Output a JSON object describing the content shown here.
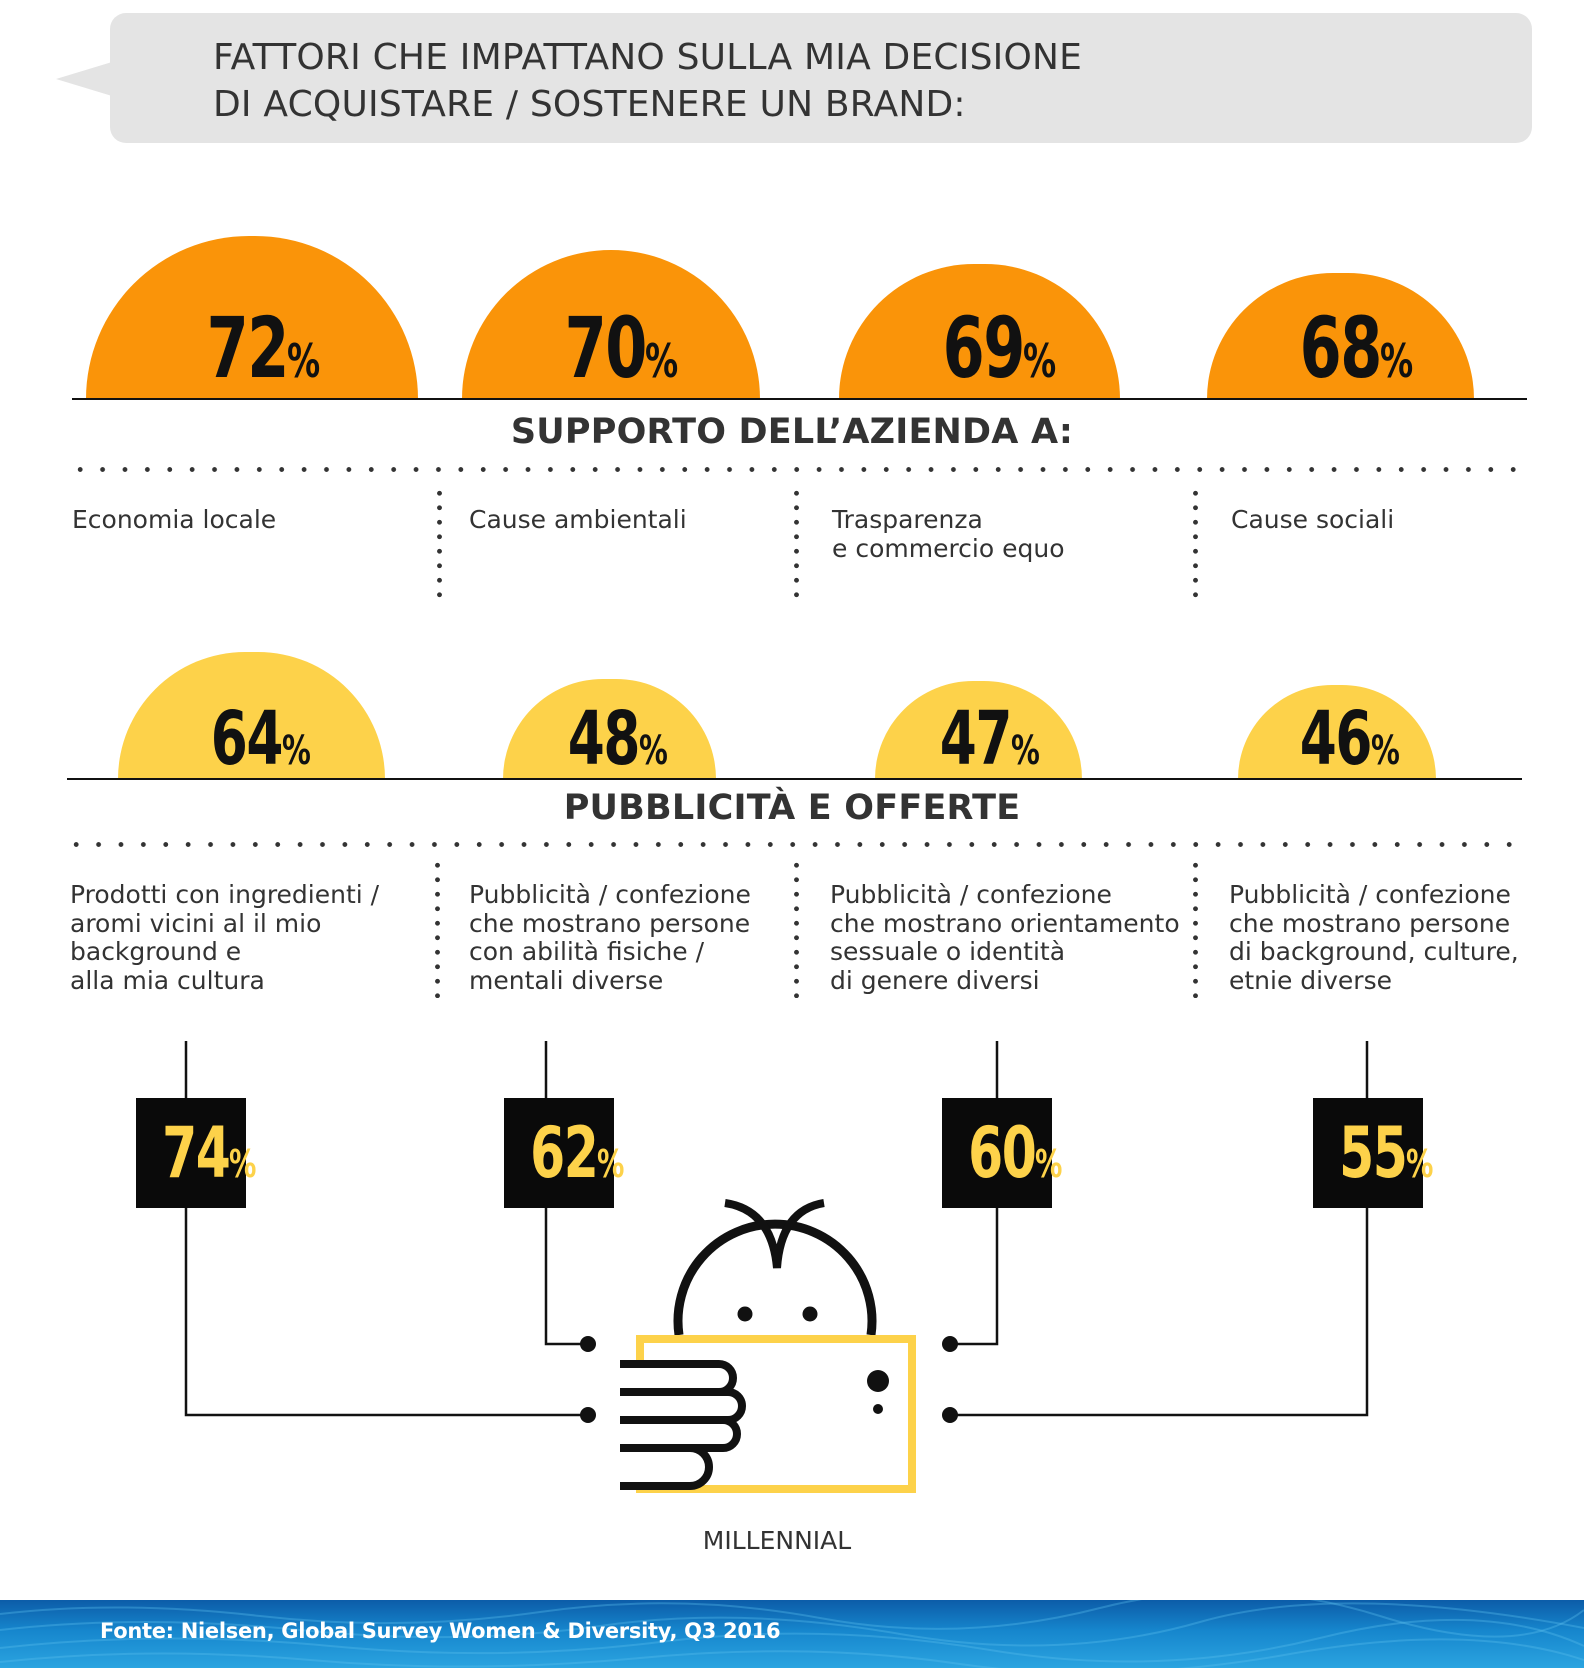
{
  "header": {
    "title_lines": [
      "FATTORI CHE IMPATTANO SULLA MIA DECISIONE",
      "DI ACQUISTARE / SOSTENERE UN BRAND:"
    ]
  },
  "colors": {
    "orange": "#fa9409",
    "yellow": "#fdd24a",
    "dark": "#0a0a0a",
    "footer_blue": "#1686cd"
  },
  "chart_data": [
    {
      "type": "bar",
      "title": "SUPPORTO DELL’AZIENDA A:",
      "categories": [
        "Economia locale",
        "Cause ambientali",
        "Trasparenza e commercio equo",
        "Cause sociali"
      ],
      "category_lines": [
        [
          "Economia locale"
        ],
        [
          "Cause ambientali"
        ],
        [
          "Trasparenza",
          "e commercio equo"
        ],
        [
          "Cause sociali"
        ]
      ],
      "values": [
        72,
        70,
        69,
        68
      ],
      "unit": "%",
      "color": "#fa9409"
    },
    {
      "type": "bar",
      "title": "PUBBLICITÀ E OFFERTE",
      "categories": [
        "Prodotti con ingredienti / aromi vicini al il mio background e alla mia cultura",
        "Pubblicità / confezione che mostrano persone con abilità fisiche / mentali diverse",
        "Pubblicità / confezione che mostrano orientamento sessuale o identità di genere diversi",
        "Pubblicità / confezione che mostrano persone di background, culture, etnie diverse"
      ],
      "category_lines": [
        [
          "Prodotti con ingredienti /",
          "aromi vicini al il mio",
          "background e",
          "alla mia cultura"
        ],
        [
          "Pubblicità / confezione",
          "che mostrano persone",
          "con abilità fisiche /",
          "mentali diverse"
        ],
        [
          "Pubblicità / confezione",
          "che mostrano orientamento",
          "sessuale o identità",
          "di genere diversi"
        ],
        [
          "Pubblicità / confezione",
          "che mostrano persone",
          "di background, culture,",
          "etnie diverse"
        ]
      ],
      "values": [
        64,
        48,
        47,
        46
      ],
      "unit": "%",
      "color": "#fdd24a"
    },
    {
      "type": "table",
      "title": "MILLENNIAL",
      "categories": [
        "Prodotti con ingredienti / aromi vicini al il mio background e alla mia cultura",
        "Pubblicità / confezione che mostrano persone con abilità fisiche / mentali diverse",
        "Pubblicità / confezione che mostrano orientamento sessuale o identità di genere diversi",
        "Pubblicità / confezione che mostrano persone di background, culture, etnie diverse"
      ],
      "values": [
        74,
        62,
        60,
        55
      ],
      "unit": "%"
    }
  ],
  "footer": {
    "source": "Fonte: Nielsen, Global Survey Women & Diversity, Q3 2016"
  }
}
